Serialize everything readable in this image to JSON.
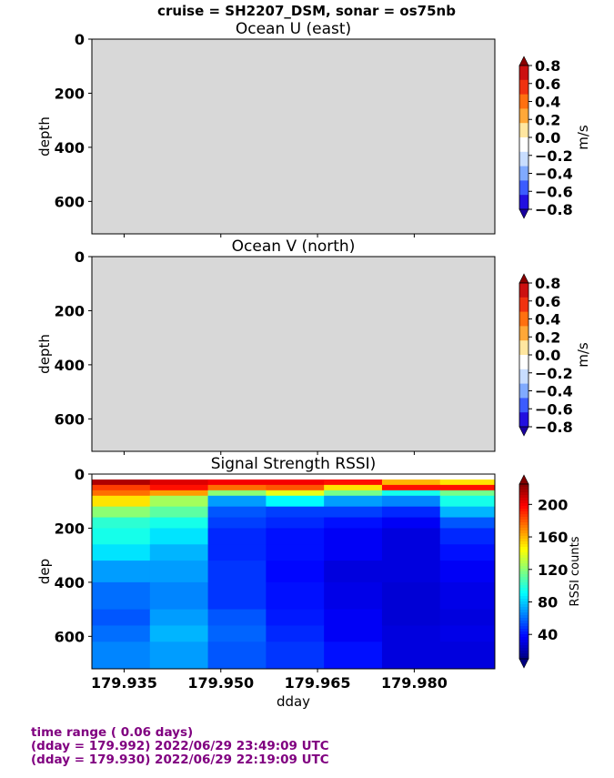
{
  "suptitle": "cruise = SH2207_DSM,  sonar = os75nb",
  "footer": {
    "line1": "time range ( 0.06 days)",
    "line2": "(dday = 179.992) 2022/06/29 23:49:09 UTC",
    "line3": "(dday = 179.930) 2022/06/29 22:19:09 UTC"
  },
  "chart_data": [
    {
      "type": "heatmap",
      "title": "Ocean U (east)",
      "ylabel": "depth",
      "ylim": [
        720,
        0
      ],
      "yticks": [
        "0",
        "200",
        "400",
        "600"
      ],
      "xlim": [
        179.93,
        179.9925
      ],
      "note_empty": true,
      "colorbar": {
        "label": "m/s",
        "ticks": [
          "0.8",
          "0.6",
          "0.4",
          "0.2",
          "0.0",
          "−0.2",
          "−0.4",
          "−0.6",
          "−0.8"
        ],
        "range": [
          -0.8,
          0.8
        ],
        "colors": [
          "#cc1010",
          "#f03210",
          "#ff7010",
          "#ffa838",
          "#ffe6a0",
          "#ffffff",
          "#c8ddff",
          "#80aaff",
          "#3c5cff",
          "#2210e0"
        ]
      }
    },
    {
      "type": "heatmap",
      "title": "Ocean V (north)",
      "ylabel": "depth",
      "ylim": [
        720,
        0
      ],
      "yticks": [
        "0",
        "200",
        "400",
        "600"
      ],
      "xlim": [
        179.93,
        179.9925
      ],
      "note_empty": true,
      "colorbar": {
        "label": "m/s",
        "ticks": [
          "0.8",
          "0.6",
          "0.4",
          "0.2",
          "0.0",
          "−0.2",
          "−0.4",
          "−0.6",
          "−0.8"
        ],
        "range": [
          -0.8,
          0.8
        ],
        "colors": [
          "#cc1010",
          "#f03210",
          "#ff7010",
          "#ffa838",
          "#ffe6a0",
          "#ffffff",
          "#c8ddff",
          "#80aaff",
          "#3c5cff",
          "#2210e0"
        ]
      }
    },
    {
      "type": "heatmap",
      "title": "Signal Strength RSSI)",
      "xlabel": "dday",
      "ylabel": "dep",
      "xlim": [
        179.93,
        179.9925
      ],
      "ylim": [
        720,
        0
      ],
      "xticks": [
        "179.935",
        "179.950",
        "179.965",
        "179.980"
      ],
      "xtick_values": [
        179.935,
        179.95,
        179.965,
        179.98
      ],
      "yticks": [
        "0",
        "200",
        "400",
        "600"
      ],
      "colorbar": {
        "label": "RSSI counts",
        "range": [
          10,
          225
        ],
        "ticks": [
          "200",
          "160",
          "120",
          "80",
          "40"
        ],
        "tick_values": [
          200,
          160,
          120,
          80,
          40
        ]
      },
      "x_edges": [
        179.93,
        179.939,
        179.948,
        179.957,
        179.966,
        179.975,
        179.984,
        179.9925
      ],
      "depth_bins": [
        [
          20,
          40
        ],
        [
          40,
          60
        ],
        [
          60,
          80
        ],
        [
          80,
          120
        ],
        [
          120,
          160
        ],
        [
          160,
          200
        ],
        [
          200,
          260
        ],
        [
          260,
          320
        ],
        [
          320,
          400
        ],
        [
          400,
          500
        ],
        [
          500,
          560
        ],
        [
          560,
          620
        ],
        [
          620,
          720
        ]
      ],
      "values": [
        [
          215,
          205,
          200,
          200,
          195,
          160,
          150
        ],
        [
          185,
          195,
          175,
          180,
          150,
          195,
          195
        ],
        [
          175,
          165,
          120,
          140,
          115,
          95,
          115
        ],
        [
          150,
          125,
          70,
          90,
          70,
          65,
          95
        ],
        [
          120,
          110,
          55,
          50,
          50,
          45,
          75
        ],
        [
          100,
          95,
          50,
          45,
          40,
          35,
          55
        ],
        [
          95,
          85,
          45,
          40,
          35,
          30,
          45
        ],
        [
          85,
          75,
          45,
          40,
          35,
          30,
          40
        ],
        [
          70,
          70,
          48,
          38,
          30,
          30,
          35
        ],
        [
          60,
          65,
          48,
          40,
          32,
          28,
          32
        ],
        [
          55,
          70,
          55,
          42,
          35,
          28,
          30
        ],
        [
          60,
          75,
          58,
          45,
          35,
          30,
          32
        ],
        [
          65,
          70,
          55,
          48,
          40,
          30,
          30
        ]
      ]
    }
  ]
}
